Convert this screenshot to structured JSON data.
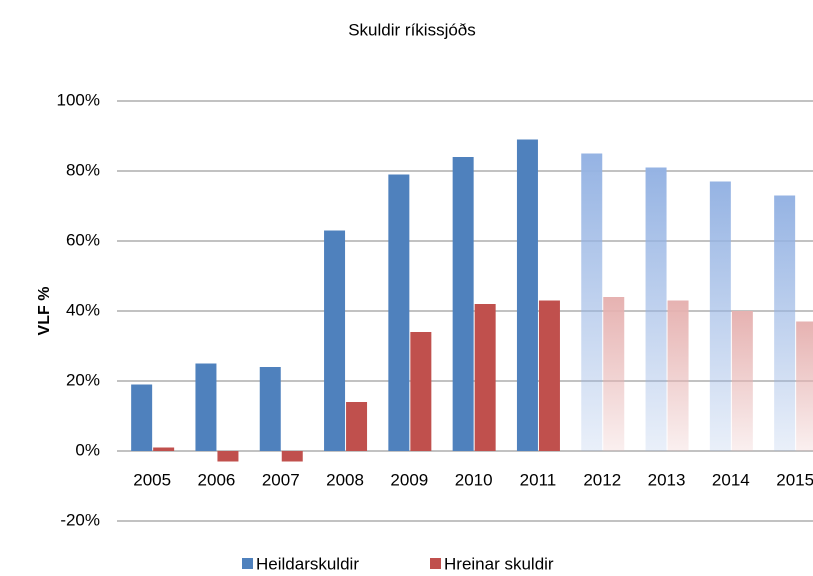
{
  "chart_data": {
    "type": "bar",
    "title": "Skuldir ríkissjóðs",
    "y_label": "VLF %",
    "categories": [
      "2005",
      "2006",
      "2007",
      "2008",
      "2009",
      "2010",
      "2011",
      "2012",
      "2013",
      "2014",
      "2015"
    ],
    "series": [
      {
        "name": "Heildarskuldir",
        "color": "#4f81bd",
        "faded_color": "#95b3e3",
        "bar_styles": [
          "solid",
          "solid",
          "solid",
          "solid",
          "solid",
          "solid",
          "solid",
          "gradient",
          "gradient",
          "gradient",
          "gradient"
        ],
        "values": [
          19,
          25,
          24,
          63,
          79,
          84,
          89,
          85,
          81,
          77,
          73
        ]
      },
      {
        "name": "Hreinar skuldir",
        "color": "#c0504d",
        "faded_color": "#e6b2b1",
        "bar_styles": [
          "solid",
          "solid",
          "solid",
          "solid",
          "solid",
          "solid",
          "solid",
          "gradient",
          "gradient",
          "gradient",
          "gradient"
        ],
        "values": [
          1,
          -3,
          -3,
          14,
          34,
          42,
          43,
          44,
          43,
          40,
          37
        ]
      }
    ],
    "ylim": [
      -20,
      100
    ],
    "yticks": [
      {
        "value": -20,
        "label": "-20%"
      },
      {
        "value": 0,
        "label": "0%"
      },
      {
        "value": 20,
        "label": "20%"
      },
      {
        "value": 40,
        "label": "40%"
      },
      {
        "value": 60,
        "label": "60%"
      },
      {
        "value": 80,
        "label": "80%"
      },
      {
        "value": 100,
        "label": "100%"
      }
    ],
    "grid": true,
    "legend": "bottom"
  }
}
